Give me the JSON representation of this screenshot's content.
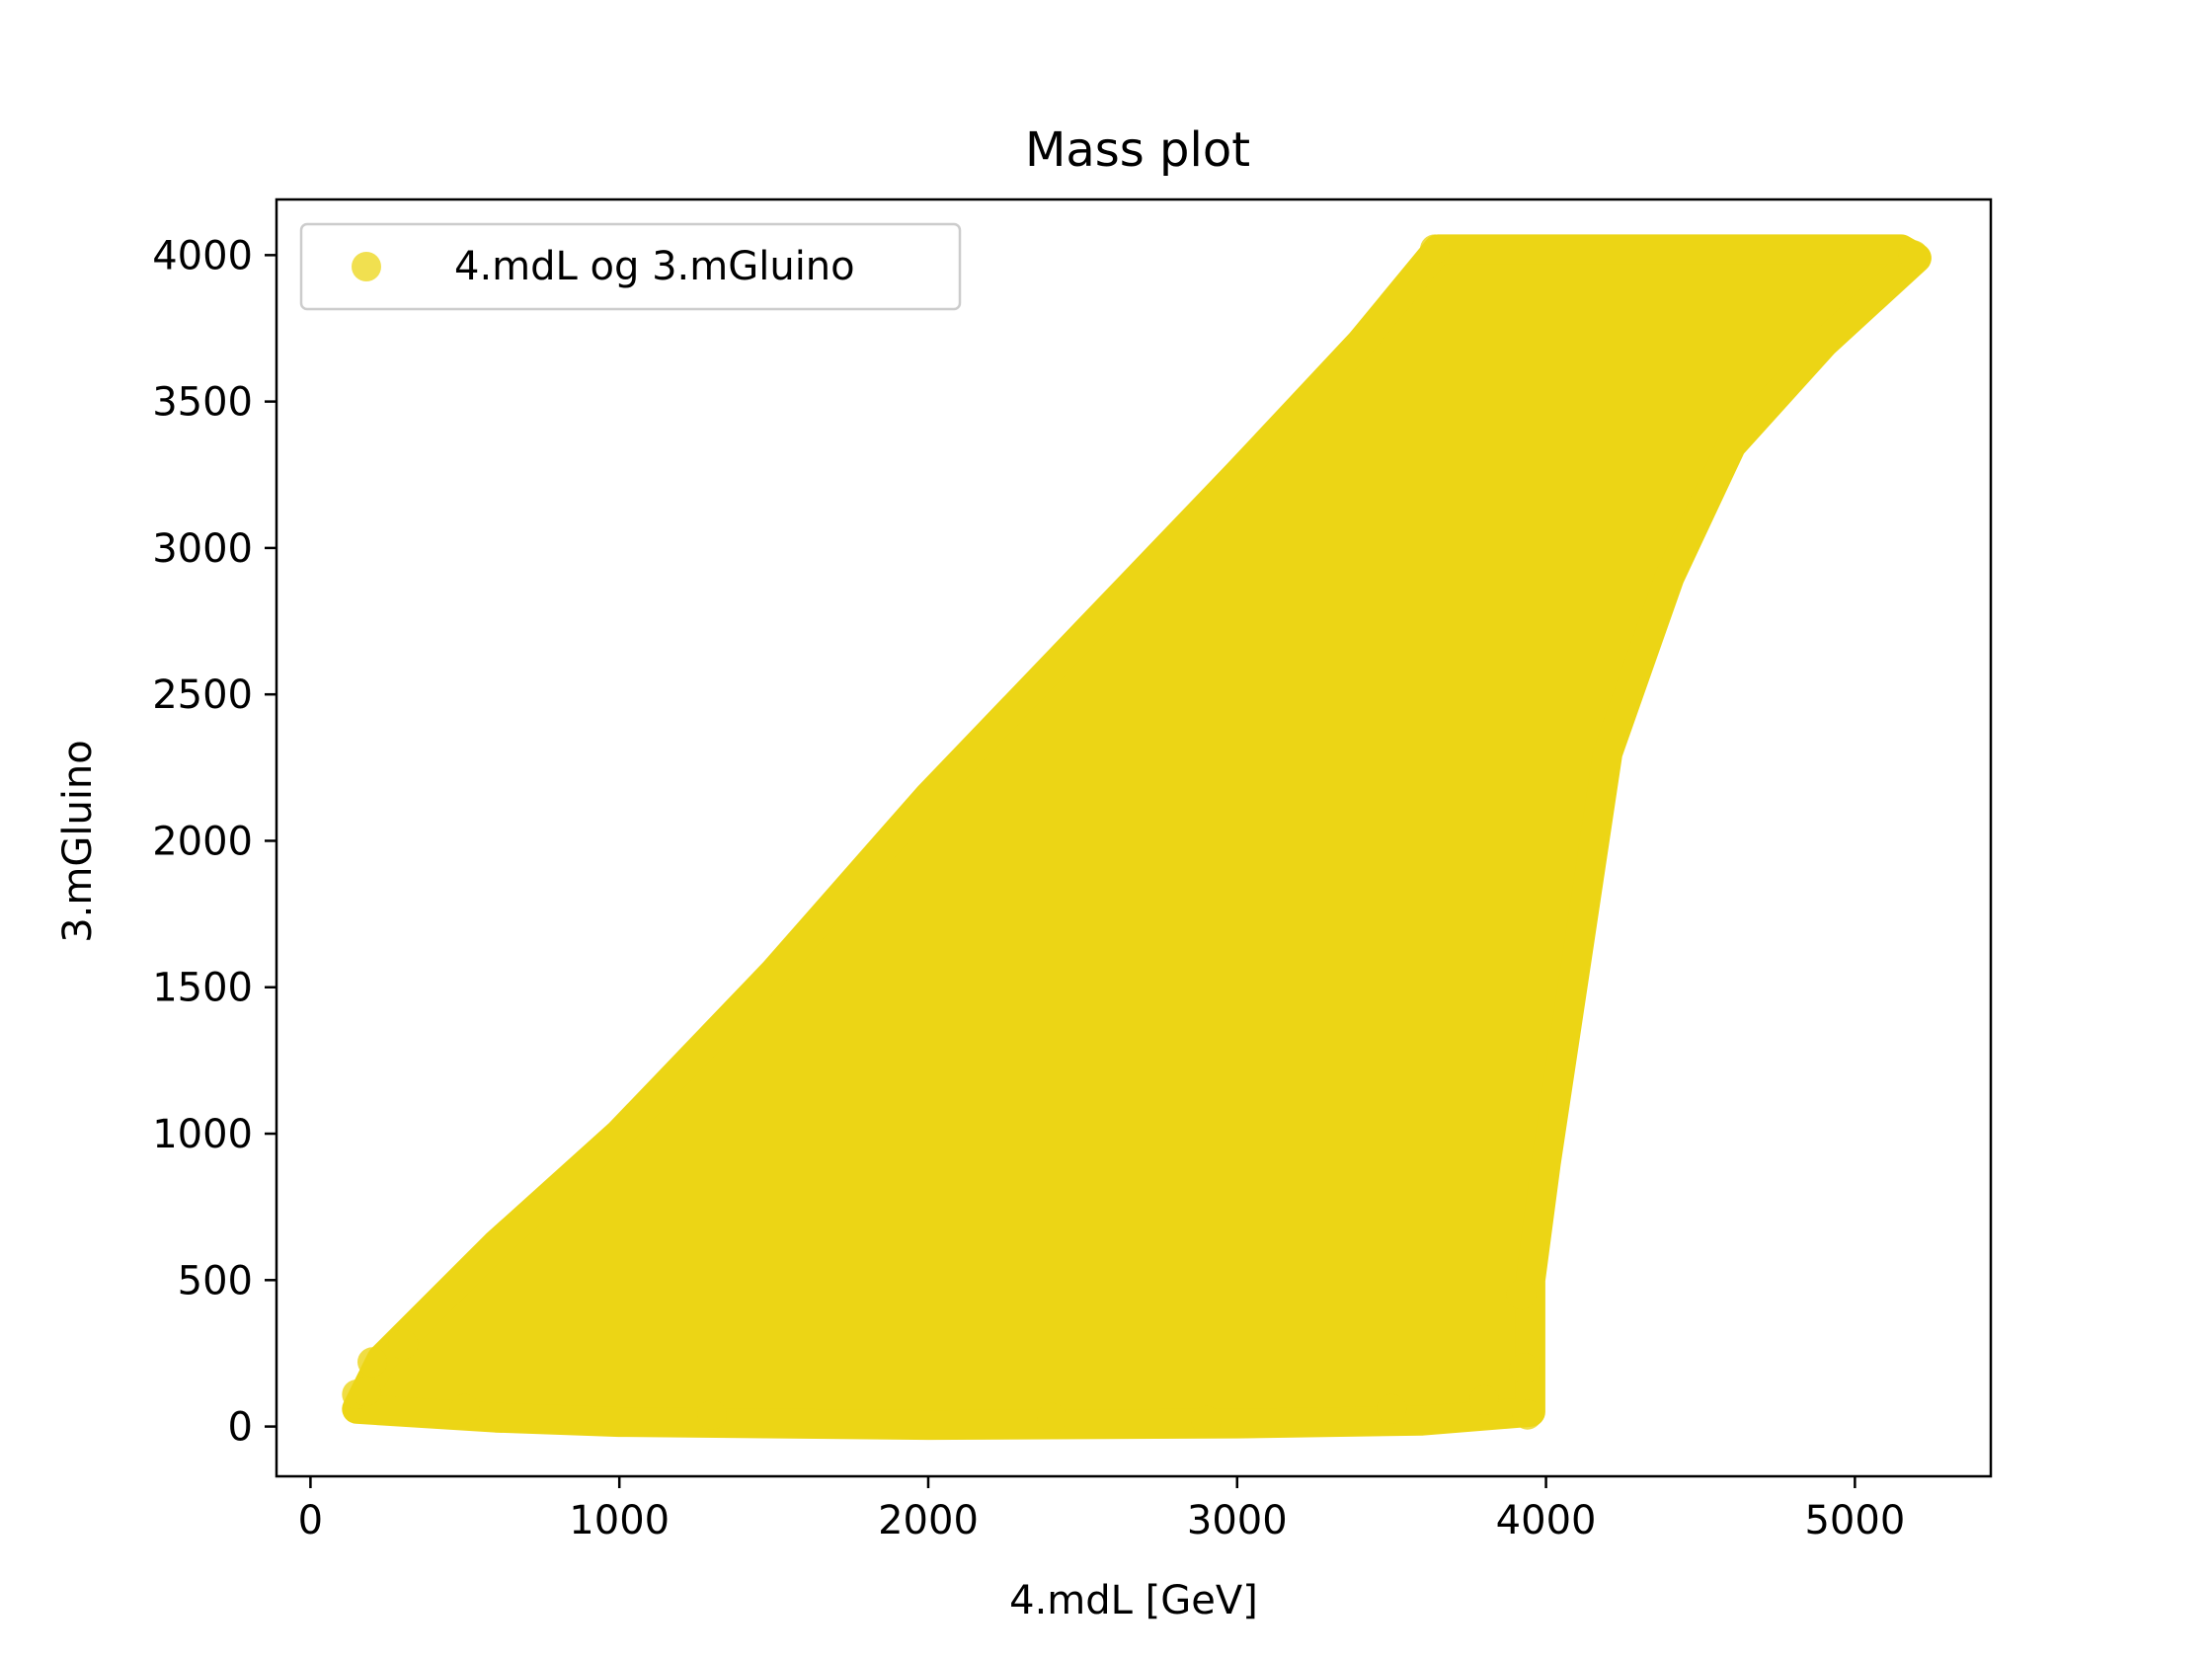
{
  "chart_data": {
    "type": "scatter",
    "title": "Mass plot",
    "xlabel": "4.mdL [GeV]",
    "ylabel": "3.mGluino",
    "xlim": [
      -110,
      5440
    ],
    "ylim": [
      -170,
      4190
    ],
    "xticks": [
      0,
      1000,
      2000,
      3000,
      4000,
      5000
    ],
    "yticks": [
      0,
      500,
      1000,
      1500,
      2000,
      2500,
      3000,
      3500,
      4000
    ],
    "grid": false,
    "legend_position": "top-left",
    "series": [
      {
        "name": "4.mdL og 3.mGluino",
        "color": "#ecd515",
        "region_outline": [
          [
            150,
            60
          ],
          [
            230,
            230
          ],
          [
            600,
            620
          ],
          [
            1000,
            1000
          ],
          [
            1500,
            1550
          ],
          [
            2000,
            2150
          ],
          [
            2500,
            2700
          ],
          [
            3000,
            3250
          ],
          [
            3400,
            3700
          ],
          [
            3650,
            4020
          ],
          [
            5150,
            4020
          ],
          [
            5200,
            3990
          ],
          [
            4900,
            3700
          ],
          [
            4600,
            3350
          ],
          [
            4400,
            2900
          ],
          [
            4200,
            2300
          ],
          [
            4100,
            1600
          ],
          [
            4000,
            900
          ],
          [
            3950,
            500
          ],
          [
            3950,
            50
          ],
          [
            3600,
            20
          ],
          [
            3000,
            10
          ],
          [
            2000,
            5
          ],
          [
            1000,
            15
          ],
          [
            600,
            30
          ],
          [
            150,
            60
          ]
        ],
        "sample_points": [
          [
            150,
            110
          ],
          [
            180,
            120
          ],
          [
            200,
            220
          ],
          [
            300,
            280
          ],
          [
            3940,
            40
          ],
          [
            3930,
            200
          ],
          [
            3920,
            450
          ],
          [
            5190,
            4000
          ],
          [
            3640,
            4020
          ],
          [
            2400,
            30
          ],
          [
            1300,
            40
          ],
          [
            2900,
            20
          ],
          [
            3500,
            60
          ],
          [
            3800,
            90
          ],
          [
            500,
            60
          ]
        ]
      }
    ]
  }
}
